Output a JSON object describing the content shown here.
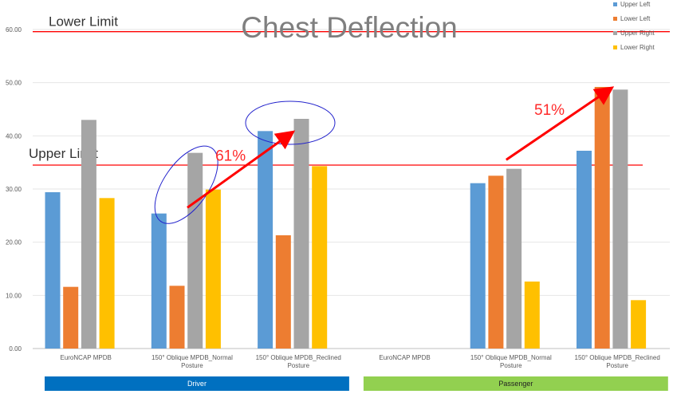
{
  "chart_data": {
    "type": "bar",
    "title": "Chest Deflection",
    "categories": [
      [
        "EuroNCAP MPDB"
      ],
      [
        "150° Oblique MPDB_Normal",
        "Posture"
      ],
      [
        "150° Oblique MPDB_Reclined",
        "Posture"
      ],
      [
        "EuroNCAP MPDB"
      ],
      [
        "150° Oblique MPDB_Normal",
        "Posture"
      ],
      [
        "150° Oblique MPDB_Reclined",
        "Posture"
      ]
    ],
    "groups": [
      {
        "label": "Driver",
        "color": "#0070c0",
        "text_color": "#ffffff",
        "category_indices": [
          0,
          1,
          2
        ]
      },
      {
        "label": "Passenger",
        "color": "#92d050",
        "text_color": "#222222",
        "category_indices": [
          3,
          4,
          5
        ]
      }
    ],
    "series": [
      {
        "name": "Upper Left",
        "color": "#5b9bd5",
        "values": [
          29.4,
          25.4,
          40.9,
          null,
          31.1,
          37.2
        ]
      },
      {
        "name": "Lower Left",
        "color": "#ed7d31",
        "values": [
          11.6,
          11.8,
          21.3,
          null,
          32.5,
          49.2
        ]
      },
      {
        "name": "Upper Right",
        "color": "#a5a5a5",
        "values": [
          43.0,
          36.8,
          43.2,
          null,
          33.8,
          48.7
        ]
      },
      {
        "name": "Lower Right",
        "color": "#ffc000",
        "values": [
          28.3,
          29.9,
          34.3,
          null,
          12.6,
          9.1
        ]
      }
    ],
    "ylim": [
      0,
      60
    ],
    "yticks": [
      "0.00",
      "10.00",
      "20.00",
      "30.00",
      "40.00",
      "50.00",
      "60.00"
    ],
    "grid": true,
    "legend_position": "top-right",
    "annotations": {
      "lower_limit": {
        "label": "Lower Limit",
        "value": 59.6,
        "color": "#ff0000"
      },
      "upper_limit": {
        "label": "Upper Limit",
        "value": 34.5,
        "color": "#ff0000"
      },
      "arrows": [
        {
          "label": "61%",
          "from": {
            "category": 1,
            "value": 26.5
          },
          "to": {
            "category": 2,
            "value": 40.5
          },
          "color": "#ff0000"
        },
        {
          "label": "51%",
          "from": {
            "category": 4,
            "value": 35.5
          },
          "to": {
            "category": 5,
            "value": 48.8
          },
          "color": "#ff0000"
        }
      ],
      "highlight_ellipses": [
        {
          "category": 1,
          "series": 2,
          "color": "#2222cc"
        },
        {
          "category": 2,
          "series": 2,
          "color": "#2222cc"
        }
      ]
    }
  }
}
